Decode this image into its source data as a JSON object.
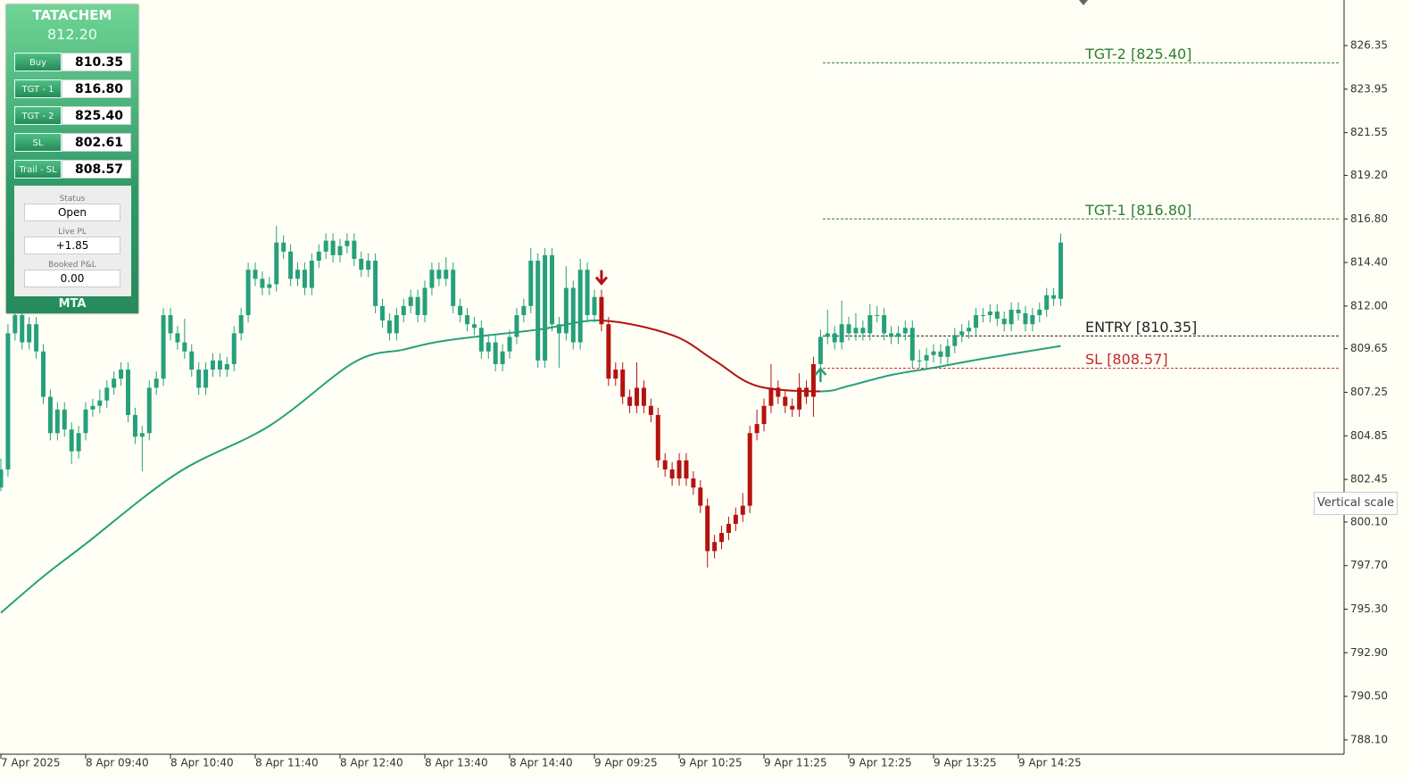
{
  "chart_data": {
    "type": "candlestick",
    "ylim": [
      787.31,
      828.86
    ],
    "yticks": [
      826.35,
      823.95,
      821.55,
      {
        "value": 819.2,
        "label": "819.20"
      },
      {
        "value": 816.8,
        "label": "816.80"
      },
      {
        "value": 814.4,
        "label": "814.40"
      },
      {
        "value": 812,
        "label": "812.00"
      },
      809.65,
      807.25,
      804.85,
      802.45,
      {
        "value": 800.1,
        "label": "800.10"
      },
      {
        "value": 797.7,
        "label": "797.70"
      },
      {
        "value": 795.3,
        "label": "795.30"
      },
      {
        "value": 792.9,
        "label": "792.90"
      },
      {
        "value": 790.5,
        "label": "790.50"
      },
      {
        "value": 788.1,
        "label": "788.10"
      }
    ],
    "categories": [
      "7 Apr 2025",
      null,
      null,
      null,
      null,
      null,
      null,
      null,
      null,
      null,
      null,
      null,
      "8 Apr 09:40",
      null,
      null,
      null,
      null,
      null,
      null,
      null,
      null,
      null,
      null,
      null,
      "8 Apr 10:40",
      null,
      null,
      null,
      null,
      null,
      null,
      null,
      null,
      null,
      null,
      null,
      "8 Apr 11:40",
      null,
      null,
      null,
      null,
      null,
      null,
      null,
      null,
      null,
      null,
      null,
      "8 Apr 12:40",
      null,
      null,
      null,
      null,
      null,
      null,
      null,
      null,
      null,
      null,
      null,
      "8 Apr 13:40",
      null,
      null,
      null,
      null,
      null,
      null,
      null,
      null,
      null,
      null,
      null,
      "8 Apr 14:40",
      null,
      null,
      null,
      null,
      null,
      null,
      null,
      null,
      null,
      null,
      null,
      "9 Apr 09:25",
      null,
      null,
      null,
      null,
      null,
      null,
      null,
      null,
      null,
      null,
      null,
      "9 Apr 10:25",
      null,
      null,
      null,
      null,
      null,
      null,
      null,
      null,
      null,
      null,
      null,
      "9 Apr 11:25",
      null,
      null,
      null,
      null,
      null,
      null,
      null,
      null,
      null,
      null,
      null,
      "9 Apr 12:25",
      null,
      null,
      null,
      null,
      null,
      null,
      null,
      null,
      null,
      null,
      null,
      "9 Apr 13:25",
      null,
      null,
      null,
      null,
      null,
      null,
      null,
      null,
      null,
      null,
      null,
      "9 Apr 14:25",
      null,
      null,
      null,
      null,
      null,
      null
    ],
    "candles": [
      [
        802.0,
        803.6,
        801.8,
        803.0
      ],
      [
        803.0,
        811.0,
        802.6,
        810.5
      ],
      [
        810.5,
        812.0,
        810.1,
        811.5
      ],
      [
        811.5,
        811.9,
        809.6,
        810.0
      ],
      [
        810.0,
        811.4,
        809.6,
        811.0
      ],
      [
        811.0,
        811.4,
        809.1,
        809.5
      ],
      [
        809.5,
        809.9,
        806.6,
        807.0
      ],
      [
        807.0,
        807.4,
        804.6,
        805.0
      ],
      [
        805.0,
        806.7,
        804.6,
        806.3
      ],
      [
        806.3,
        806.7,
        804.8,
        805.2
      ],
      [
        805.2,
        805.6,
        803.3,
        804.0
      ],
      [
        804.0,
        805.4,
        803.6,
        805.0
      ],
      [
        805.0,
        806.7,
        804.6,
        806.3
      ],
      [
        806.3,
        806.9,
        805.9,
        806.5
      ],
      [
        806.5,
        807.4,
        806.1,
        806.8
      ],
      [
        806.8,
        807.9,
        806.4,
        807.5
      ],
      [
        807.5,
        808.4,
        807.1,
        808.0
      ],
      [
        808.0,
        808.9,
        807.6,
        808.5
      ],
      [
        808.5,
        808.9,
        805.6,
        806.0
      ],
      [
        806.0,
        806.4,
        804.4,
        804.8
      ],
      [
        804.8,
        805.4,
        802.9,
        805.0
      ],
      [
        805.0,
        807.9,
        804.6,
        807.5
      ],
      [
        807.5,
        808.4,
        807.1,
        808.0
      ],
      [
        808.0,
        811.9,
        807.6,
        811.5
      ],
      [
        811.5,
        811.9,
        810.1,
        810.5
      ],
      [
        810.5,
        810.9,
        809.6,
        810.0
      ],
      [
        810.0,
        811.3,
        809.1,
        809.5
      ],
      [
        809.5,
        809.9,
        808.1,
        808.5
      ],
      [
        808.5,
        808.9,
        807.1,
        807.5
      ],
      [
        807.5,
        808.9,
        807.1,
        808.5
      ],
      [
        808.5,
        809.4,
        808.1,
        809.0
      ],
      [
        809.0,
        809.4,
        808.1,
        808.5
      ],
      [
        808.5,
        809.2,
        808.1,
        808.8
      ],
      [
        808.8,
        810.9,
        808.4,
        810.5
      ],
      [
        810.5,
        811.9,
        810.1,
        811.5
      ],
      [
        811.5,
        814.4,
        811.1,
        814.0
      ],
      [
        814.0,
        814.4,
        813.1,
        813.5
      ],
      [
        813.5,
        813.9,
        812.6,
        813.0
      ],
      [
        813.0,
        813.6,
        812.6,
        813.2
      ],
      [
        813.2,
        816.4,
        812.8,
        815.5
      ],
      [
        815.5,
        815.9,
        814.6,
        815.0
      ],
      [
        815.0,
        815.4,
        813.1,
        813.5
      ],
      [
        813.5,
        814.4,
        813.1,
        814.0
      ],
      [
        814.0,
        814.4,
        812.6,
        813.0
      ],
      [
        813.0,
        814.9,
        812.6,
        814.5
      ],
      [
        814.5,
        815.4,
        814.1,
        815.0
      ],
      [
        815.0,
        816.0,
        814.6,
        815.6
      ],
      [
        815.6,
        816.0,
        814.4,
        814.8
      ],
      [
        814.8,
        815.7,
        814.4,
        815.3
      ],
      [
        815.3,
        816.0,
        814.9,
        815.6
      ],
      [
        815.6,
        816.0,
        814.2,
        814.6
      ],
      [
        814.6,
        815.0,
        813.6,
        814.0
      ],
      [
        814.0,
        814.9,
        813.6,
        814.5
      ],
      [
        814.5,
        814.9,
        811.6,
        812.0
      ],
      [
        812.0,
        812.4,
        810.8,
        811.2
      ],
      [
        811.2,
        811.6,
        810.1,
        810.5
      ],
      [
        810.5,
        811.9,
        810.1,
        811.5
      ],
      [
        811.5,
        812.4,
        811.1,
        812.0
      ],
      [
        812.0,
        812.9,
        811.6,
        812.5
      ],
      [
        812.5,
        812.9,
        811.1,
        811.5
      ],
      [
        811.5,
        813.4,
        811.1,
        813.0
      ],
      [
        813.0,
        814.4,
        812.6,
        814.0
      ],
      [
        814.0,
        814.4,
        813.1,
        813.5
      ],
      [
        813.5,
        814.7,
        813.1,
        814.0
      ],
      [
        814.0,
        814.4,
        811.6,
        812.0
      ],
      [
        812.0,
        812.4,
        811.1,
        811.5
      ],
      [
        811.5,
        811.9,
        810.6,
        811.0
      ],
      [
        811.0,
        811.4,
        810.4,
        810.8
      ],
      [
        810.8,
        811.2,
        809.1,
        809.5
      ],
      [
        809.5,
        810.4,
        809.1,
        810.0
      ],
      [
        810.0,
        810.4,
        808.4,
        808.8
      ],
      [
        808.8,
        809.9,
        808.4,
        809.5
      ],
      [
        809.5,
        810.7,
        809.1,
        810.3
      ],
      [
        810.3,
        811.9,
        809.9,
        811.5
      ],
      [
        811.5,
        812.4,
        811.1,
        812.0
      ],
      [
        812.0,
        815.2,
        811.6,
        814.5
      ],
      [
        814.5,
        814.9,
        808.6,
        809.0
      ],
      [
        809.0,
        815.2,
        808.6,
        814.8
      ],
      [
        814.8,
        815.2,
        810.6,
        811.0
      ],
      [
        811.0,
        811.4,
        808.6,
        810.5
      ],
      [
        810.5,
        814.2,
        810.1,
        813.0
      ],
      [
        813.0,
        813.4,
        809.6,
        810.0
      ],
      [
        810.0,
        814.6,
        809.6,
        814.0
      ],
      [
        814.0,
        814.4,
        811.1,
        811.5
      ],
      [
        811.5,
        812.9,
        811.1,
        812.5
      ],
      [
        812.5,
        812.9,
        810.6,
        811.0
      ],
      [
        811.0,
        811.4,
        807.6,
        808.0
      ],
      [
        808.0,
        808.9,
        807.6,
        808.5
      ],
      [
        808.5,
        808.9,
        806.6,
        807.0
      ],
      [
        807.0,
        807.4,
        806.1,
        806.5
      ],
      [
        806.5,
        808.9,
        806.1,
        807.5
      ],
      [
        807.5,
        807.9,
        806.1,
        806.5
      ],
      [
        806.5,
        806.9,
        805.6,
        806.0
      ],
      [
        806.0,
        806.4,
        803.1,
        803.5
      ],
      [
        803.5,
        803.9,
        802.6,
        803.0
      ],
      [
        803.0,
        803.4,
        802.1,
        802.5
      ],
      [
        802.5,
        803.9,
        802.1,
        803.5
      ],
      [
        803.5,
        803.9,
        802.1,
        802.5
      ],
      [
        802.5,
        802.9,
        801.6,
        802.0
      ],
      [
        802.0,
        802.4,
        800.6,
        801.0
      ],
      [
        801.0,
        801.4,
        797.6,
        798.5
      ],
      [
        798.5,
        799.4,
        798.1,
        799.0
      ],
      [
        799.0,
        799.9,
        798.6,
        799.5
      ],
      [
        799.5,
        800.4,
        799.1,
        800.0
      ],
      [
        800.0,
        800.9,
        799.6,
        800.5
      ],
      [
        800.5,
        801.7,
        800.1,
        801.0
      ],
      [
        801.0,
        805.4,
        800.6,
        805.0
      ],
      [
        805.0,
        806.3,
        804.6,
        805.5
      ],
      [
        805.5,
        806.9,
        805.1,
        806.5
      ],
      [
        806.5,
        808.8,
        806.1,
        807.5
      ],
      [
        807.5,
        807.9,
        806.6,
        807.0
      ],
      [
        807.0,
        807.4,
        806.1,
        806.5
      ],
      [
        806.5,
        806.9,
        805.9,
        806.3
      ],
      [
        806.3,
        808.3,
        805.9,
        807.5
      ],
      [
        807.5,
        807.9,
        806.6,
        807.0
      ],
      [
        807.0,
        809.2,
        805.9,
        808.8
      ],
      [
        808.8,
        810.7,
        808.4,
        810.3
      ],
      [
        810.3,
        811.8,
        809.9,
        810.5
      ],
      [
        810.5,
        810.9,
        809.6,
        810.0
      ],
      [
        810.0,
        812.3,
        809.6,
        811.0
      ],
      [
        811.0,
        811.4,
        810.1,
        810.5
      ],
      [
        810.5,
        811.6,
        810.1,
        810.8
      ],
      [
        810.8,
        811.2,
        810.1,
        810.5
      ],
      [
        810.5,
        812.1,
        810.1,
        811.5
      ],
      [
        811.5,
        812.0,
        811.1,
        811.5
      ],
      [
        811.5,
        811.9,
        810.1,
        810.5
      ],
      [
        810.5,
        810.9,
        809.9,
        810.3
      ],
      [
        810.3,
        810.9,
        809.9,
        810.5
      ],
      [
        810.5,
        811.2,
        810.1,
        810.8
      ],
      [
        810.8,
        811.2,
        808.6,
        809.0
      ],
      [
        809.0,
        809.6,
        808.6,
        809.0
      ],
      [
        809.0,
        809.7,
        808.6,
        809.3
      ],
      [
        809.3,
        809.9,
        808.9,
        809.5
      ],
      [
        809.5,
        809.9,
        808.8,
        809.2
      ],
      [
        809.2,
        810.2,
        808.8,
        809.8
      ],
      [
        809.8,
        810.8,
        809.4,
        810.4
      ],
      [
        810.4,
        811.0,
        810.0,
        810.6
      ],
      [
        810.6,
        811.2,
        810.2,
        810.8
      ],
      [
        810.8,
        811.9,
        810.4,
        811.5
      ],
      [
        811.5,
        811.9,
        811.1,
        811.5
      ],
      [
        811.5,
        812.1,
        811.1,
        811.7
      ],
      [
        811.7,
        812.1,
        810.9,
        811.3
      ],
      [
        811.3,
        811.7,
        810.6,
        811.0
      ],
      [
        811.0,
        812.2,
        810.6,
        811.8
      ],
      [
        811.8,
        812.2,
        811.2,
        811.6
      ],
      [
        811.6,
        812.0,
        810.6,
        811.0
      ],
      [
        811.0,
        811.9,
        810.6,
        811.5
      ],
      [
        811.5,
        812.2,
        811.1,
        811.8
      ],
      [
        811.8,
        813.0,
        811.4,
        812.6
      ],
      [
        812.6,
        813.0,
        812.0,
        812.4
      ],
      [
        812.4,
        816.0,
        812.0,
        815.5
      ]
    ],
    "initial_trend": "up",
    "trend_colors": {
      "up": "#26a07a",
      "down": "#b5120f"
    },
    "signals": [
      {
        "index": 85,
        "direction": "down"
      },
      {
        "index": 116,
        "direction": "up"
      }
    ],
    "ma": {
      "x": [
        0,
        6,
        12,
        25,
        38,
        50,
        57,
        63,
        76,
        85,
        95,
        101,
        107,
        116,
        120,
        126,
        132,
        139,
        150
      ],
      "values": [
        795.1,
        797.1,
        798.9,
        802.8,
        805.4,
        808.9,
        809.6,
        810.1,
        810.7,
        811.2,
        810.4,
        809.0,
        807.6,
        807.3,
        807.6,
        808.2,
        808.6,
        809.1,
        809.8
      ]
    },
    "levels": [
      {
        "label": "TGT-2 [825.40]",
        "value": 825.4,
        "color": "#2e7d32"
      },
      {
        "label": "TGT-1 [816.80]",
        "value": 816.8,
        "color": "#2e7d32"
      },
      {
        "label": "ENTRY [810.35]",
        "value": 810.35,
        "color": "#222222"
      },
      {
        "label": "SL [808.57]",
        "value": 808.57,
        "color": "#c62828"
      }
    ],
    "tooltip": "Vertical scale"
  },
  "panel": {
    "symbol": "TATACHEM",
    "price": "812.20",
    "rows": [
      {
        "label": "Buy",
        "value": "810.35"
      },
      {
        "label": "TGT - 1",
        "value": "816.80"
      },
      {
        "label": "TGT - 2",
        "value": "825.40"
      },
      {
        "label": "SL",
        "value": "802.61"
      },
      {
        "label": "Trail - SL",
        "value": "808.57"
      }
    ],
    "status": [
      {
        "label": "Status",
        "value": "Open"
      },
      {
        "label": "Live PL",
        "value": "+1.85"
      },
      {
        "label": "Booked P&L",
        "value": "0.00"
      }
    ],
    "footer": "MTA"
  }
}
